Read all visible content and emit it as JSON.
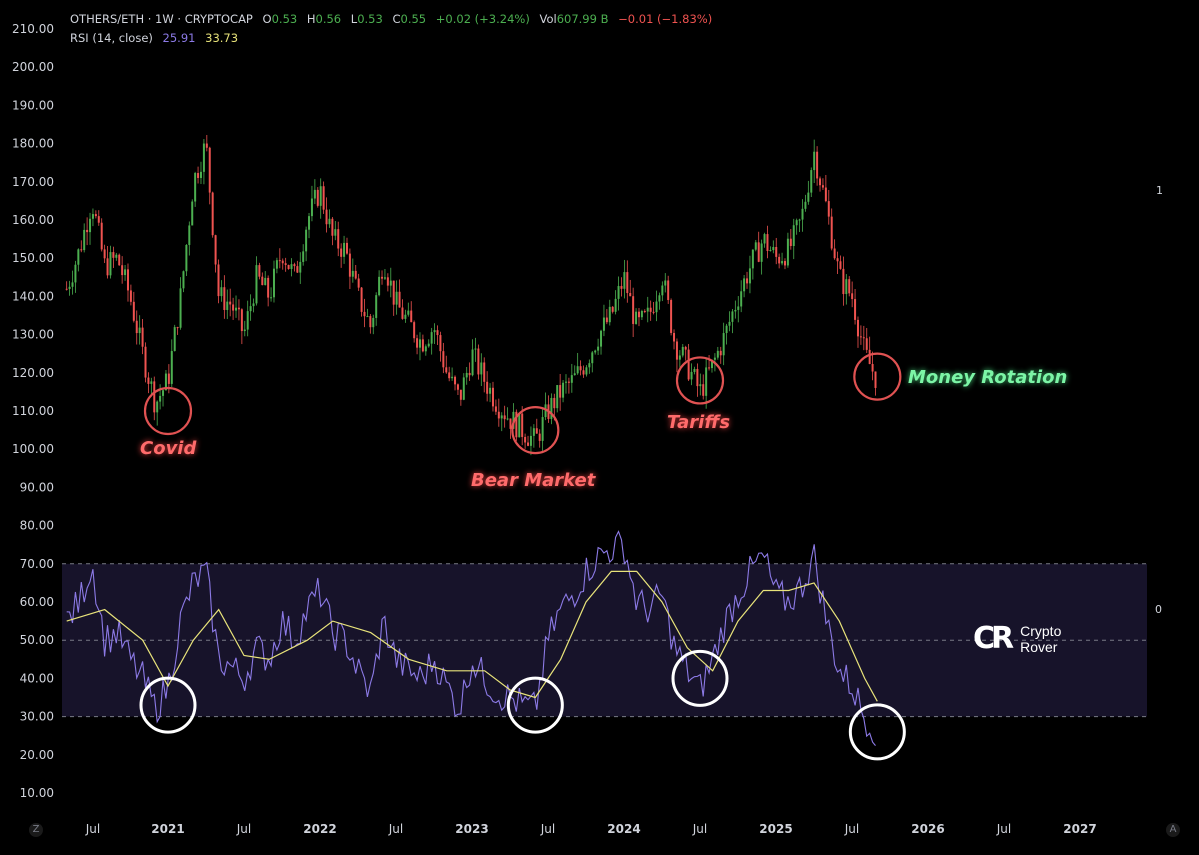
{
  "header": {
    "symbol": "OTHERS/ETH · 1W · CRYPTOCAP",
    "open_label": "O",
    "open": "0.53",
    "high_label": "H",
    "high": "0.56",
    "low_label": "L",
    "low": "0.53",
    "close_label": "C",
    "close": "0.55",
    "change": "+0.02 (+3.24%)",
    "vol_label": "Vol",
    "vol": "607.99 B",
    "vol_change": "−0.01 (−1.83%)",
    "rsi_label": "RSI (14, close)",
    "rsi_value": "25.91",
    "rsi_ma_value": "33.73"
  },
  "side_numbers": {
    "price_pane": "1",
    "rsi_pane": "0"
  },
  "logo": {
    "line1": "Crypto",
    "line2": "Rover",
    "mark": "CR"
  },
  "corners": {
    "left": "Z",
    "right": "A"
  },
  "annotations": [
    {
      "text": "Covid",
      "color": "red"
    },
    {
      "text": "Bear Market",
      "color": "red"
    },
    {
      "text": "Tariffs",
      "color": "red"
    },
    {
      "text": "Money Rotation",
      "color": "green"
    }
  ],
  "colors": {
    "up": "#4caf50",
    "down": "#ef5350",
    "rsi": "#8c7ae6",
    "rsi_ma": "#e8e37a",
    "circle_red": "#e05252",
    "circle_white": "#ffffff",
    "band": "#17132a"
  },
  "chart_data": {
    "type": "candlestick",
    "x_axis": {
      "tick_labels": [
        "Jul",
        "2021",
        "Jul",
        "2022",
        "Jul",
        "2023",
        "Jul",
        "2024",
        "Jul",
        "2025",
        "Jul",
        "2026",
        "Jul",
        "2027"
      ]
    },
    "y_axis": {
      "tick_labels": [
        "210.00",
        "200.00",
        "190.00",
        "180.00",
        "170.00",
        "160.00",
        "150.00",
        "140.00",
        "130.00",
        "120.00",
        "110.00",
        "100.00",
        "90.00",
        "80.00",
        "70.00",
        "60.00",
        "50.00",
        "40.00",
        "30.00",
        "20.00",
        "10.00"
      ],
      "range": [
        0,
        210
      ]
    },
    "price_path": [
      [
        "2020-05",
        142
      ],
      [
        "2020-06",
        152
      ],
      [
        "2020-07",
        165
      ],
      [
        "2020-08",
        148
      ],
      [
        "2020-09",
        150
      ],
      [
        "2020-10",
        140
      ],
      [
        "2020-11",
        125
      ],
      [
        "2020-12",
        112
      ],
      [
        "2021-01",
        118
      ],
      [
        "2021-02",
        140
      ],
      [
        "2021-03",
        170
      ],
      [
        "2021-04",
        180
      ],
      [
        "2021-05",
        140
      ],
      [
        "2021-06",
        138
      ],
      [
        "2021-07",
        130
      ],
      [
        "2021-08",
        145
      ],
      [
        "2021-09",
        140
      ],
      [
        "2021-10",
        152
      ],
      [
        "2021-11",
        145
      ],
      [
        "2021-12",
        160
      ],
      [
        "2022-01",
        168
      ],
      [
        "2022-02",
        155
      ],
      [
        "2022-03",
        152
      ],
      [
        "2022-04",
        140
      ],
      [
        "2022-05",
        132
      ],
      [
        "2022-06",
        150
      ],
      [
        "2022-07",
        138
      ],
      [
        "2022-08",
        133
      ],
      [
        "2022-09",
        128
      ],
      [
        "2022-10",
        132
      ],
      [
        "2022-11",
        120
      ],
      [
        "2022-12",
        113
      ],
      [
        "2023-01",
        125
      ],
      [
        "2023-02",
        118
      ],
      [
        "2023-03",
        112
      ],
      [
        "2023-04",
        108
      ],
      [
        "2023-05",
        105
      ],
      [
        "2023-06",
        102
      ],
      [
        "2023-07",
        110
      ],
      [
        "2023-08",
        115
      ],
      [
        "2023-09",
        118
      ],
      [
        "2023-10",
        123
      ],
      [
        "2023-11",
        130
      ],
      [
        "2023-12",
        135
      ],
      [
        "2024-01",
        145
      ],
      [
        "2024-02",
        132
      ],
      [
        "2024-03",
        135
      ],
      [
        "2024-04",
        146
      ],
      [
        "2024-05",
        128
      ],
      [
        "2024-06",
        122
      ],
      [
        "2024-07",
        115
      ],
      [
        "2024-08",
        122
      ],
      [
        "2024-09",
        130
      ],
      [
        "2024-10",
        140
      ],
      [
        "2024-11",
        148
      ],
      [
        "2024-12",
        155
      ],
      [
        "2025-01",
        150
      ],
      [
        "2025-02",
        152
      ],
      [
        "2025-03",
        160
      ],
      [
        "2025-04",
        178
      ],
      [
        "2025-05",
        163
      ],
      [
        "2025-06",
        145
      ],
      [
        "2025-07",
        140
      ],
      [
        "2025-08",
        125
      ],
      [
        "2025-09",
        118
      ]
    ],
    "rsi": {
      "name": "RSI (14, close)",
      "path": [
        [
          "2020-05",
          55
        ],
        [
          "2020-06",
          60
        ],
        [
          "2020-07",
          70
        ],
        [
          "2020-08",
          50
        ],
        [
          "2020-09",
          52
        ],
        [
          "2020-10",
          45
        ],
        [
          "2020-11",
          40
        ],
        [
          "2020-12",
          32
        ],
        [
          "2021-01",
          38
        ],
        [
          "2021-02",
          55
        ],
        [
          "2021-03",
          65
        ],
        [
          "2021-04",
          68
        ],
        [
          "2021-05",
          45
        ],
        [
          "2021-06",
          43
        ],
        [
          "2021-07",
          40
        ],
        [
          "2021-08",
          48
        ],
        [
          "2021-09",
          45
        ],
        [
          "2021-10",
          55
        ],
        [
          "2021-11",
          50
        ],
        [
          "2021-12",
          58
        ],
        [
          "2022-01",
          63
        ],
        [
          "2022-02",
          52
        ],
        [
          "2022-03",
          50
        ],
        [
          "2022-04",
          42
        ],
        [
          "2022-05",
          36
        ],
        [
          "2022-06",
          55
        ],
        [
          "2022-07",
          45
        ],
        [
          "2022-08",
          42
        ],
        [
          "2022-09",
          40
        ],
        [
          "2022-10",
          45
        ],
        [
          "2022-11",
          38
        ],
        [
          "2022-12",
          32
        ],
        [
          "2023-01",
          45
        ],
        [
          "2023-02",
          40
        ],
        [
          "2023-03",
          36
        ],
        [
          "2023-04",
          35
        ],
        [
          "2023-05",
          33
        ],
        [
          "2023-06",
          32
        ],
        [
          "2023-07",
          50
        ],
        [
          "2023-08",
          58
        ],
        [
          "2023-09",
          62
        ],
        [
          "2023-10",
          68
        ],
        [
          "2023-11",
          72
        ],
        [
          "2023-12",
          74
        ],
        [
          "2024-01",
          75
        ],
        [
          "2024-02",
          60
        ],
        [
          "2024-03",
          58
        ],
        [
          "2024-04",
          62
        ],
        [
          "2024-05",
          48
        ],
        [
          "2024-06",
          42
        ],
        [
          "2024-07",
          37
        ],
        [
          "2024-08",
          45
        ],
        [
          "2024-09",
          55
        ],
        [
          "2024-10",
          62
        ],
        [
          "2024-11",
          68
        ],
        [
          "2024-12",
          72
        ],
        [
          "2025-01",
          62
        ],
        [
          "2025-02",
          60
        ],
        [
          "2025-03",
          64
        ],
        [
          "2025-04",
          72
        ],
        [
          "2025-05",
          55
        ],
        [
          "2025-06",
          42
        ],
        [
          "2025-07",
          38
        ],
        [
          "2025-08",
          30
        ],
        [
          "2025-09",
          26
        ]
      ],
      "levels": [
        70,
        50,
        30
      ]
    },
    "rsi_ma": {
      "path": [
        [
          "2020-05",
          55
        ],
        [
          "2020-08",
          58
        ],
        [
          "2020-11",
          50
        ],
        [
          "2021-01",
          38
        ],
        [
          "2021-03",
          50
        ],
        [
          "2021-05",
          58
        ],
        [
          "2021-07",
          46
        ],
        [
          "2021-09",
          45
        ],
        [
          "2021-12",
          50
        ],
        [
          "2022-02",
          55
        ],
        [
          "2022-05",
          52
        ],
        [
          "2022-08",
          45
        ],
        [
          "2022-11",
          42
        ],
        [
          "2023-02",
          42
        ],
        [
          "2023-04",
          37
        ],
        [
          "2023-06",
          35
        ],
        [
          "2023-08",
          45
        ],
        [
          "2023-10",
          60
        ],
        [
          "2023-12",
          68
        ],
        [
          "2024-02",
          68
        ],
        [
          "2024-04",
          60
        ],
        [
          "2024-06",
          48
        ],
        [
          "2024-08",
          42
        ],
        [
          "2024-10",
          55
        ],
        [
          "2024-12",
          63
        ],
        [
          "2025-02",
          63
        ],
        [
          "2025-04",
          65
        ],
        [
          "2025-06",
          55
        ],
        [
          "2025-08",
          40
        ],
        [
          "2025-09",
          34
        ]
      ]
    },
    "highlight_circles": {
      "price": [
        [
          "2021-01",
          110
        ],
        [
          "2023-06",
          105
        ],
        [
          "2024-07",
          118
        ],
        [
          "2025-09",
          119
        ]
      ],
      "rsi": [
        [
          "2021-01",
          33
        ],
        [
          "2023-06",
          33
        ],
        [
          "2024-07",
          40
        ],
        [
          "2025-09",
          26
        ]
      ]
    }
  }
}
